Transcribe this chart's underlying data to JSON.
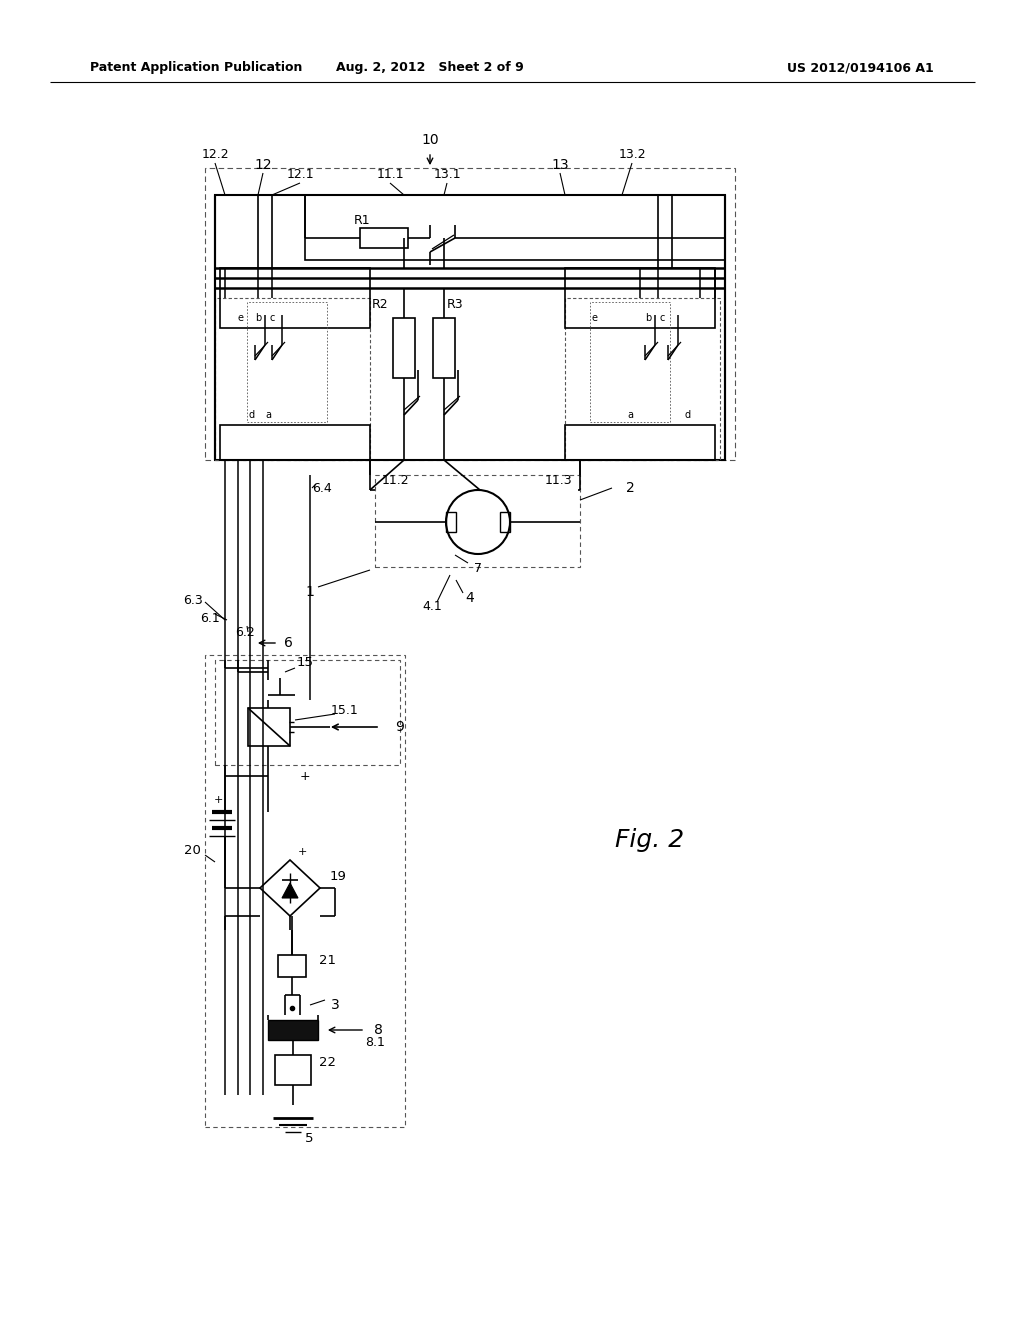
{
  "header_left": "Patent Application Publication",
  "header_center": "Aug. 2, 2012   Sheet 2 of 9",
  "header_right": "US 2012/0194106 A1",
  "fig_label": "Fig. 2",
  "bg": "#ffffff",
  "lc": "#000000",
  "dc": "#555555"
}
